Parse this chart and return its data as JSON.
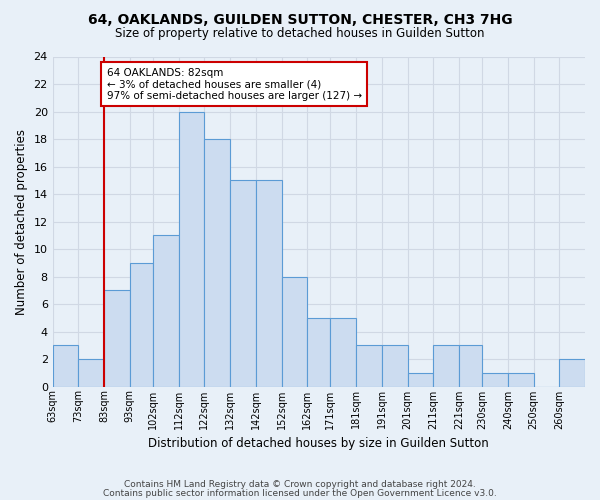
{
  "title1": "64, OAKLANDS, GUILDEN SUTTON, CHESTER, CH3 7HG",
  "title2": "Size of property relative to detached houses in Guilden Sutton",
  "xlabel": "Distribution of detached houses by size in Guilden Sutton",
  "ylabel": "Number of detached properties",
  "footer1": "Contains HM Land Registry data © Crown copyright and database right 2024.",
  "footer2": "Contains public sector information licensed under the Open Government Licence v3.0.",
  "bin_labels": [
    "63sqm",
    "73sqm",
    "83sqm",
    "93sqm",
    "102sqm",
    "112sqm",
    "122sqm",
    "132sqm",
    "142sqm",
    "152sqm",
    "162sqm",
    "171sqm",
    "181sqm",
    "191sqm",
    "201sqm",
    "211sqm",
    "221sqm",
    "230sqm",
    "240sqm",
    "250sqm",
    "260sqm"
  ],
  "bin_starts": [
    63,
    73,
    83,
    93,
    102,
    112,
    122,
    132,
    142,
    152,
    162,
    171,
    181,
    191,
    201,
    211,
    221,
    230,
    240,
    250,
    260
  ],
  "bin_ends": [
    73,
    83,
    93,
    102,
    112,
    122,
    132,
    142,
    152,
    162,
    171,
    181,
    191,
    201,
    211,
    221,
    230,
    240,
    250,
    260,
    270
  ],
  "bar_heights": [
    3,
    2,
    7,
    9,
    11,
    20,
    18,
    15,
    15,
    8,
    5,
    5,
    3,
    3,
    1,
    3,
    3,
    1,
    1,
    0,
    2
  ],
  "bar_color": "#ccdcf0",
  "bar_edge_color": "#5b9bd5",
  "annotation_text1": "64 OAKLANDS: 82sqm",
  "annotation_text2": "← 3% of detached houses are smaller (4)",
  "annotation_text3": "97% of semi-detached houses are larger (127) →",
  "vline_x": 83,
  "vline_color": "#cc0000",
  "annotation_box_facecolor": "#ffffff",
  "annotation_box_edgecolor": "#cc0000",
  "grid_color": "#d0d8e4",
  "background_color": "#e8f0f8",
  "ylim_max": 24,
  "yticks": [
    0,
    2,
    4,
    6,
    8,
    10,
    12,
    14,
    16,
    18,
    20,
    22,
    24
  ]
}
